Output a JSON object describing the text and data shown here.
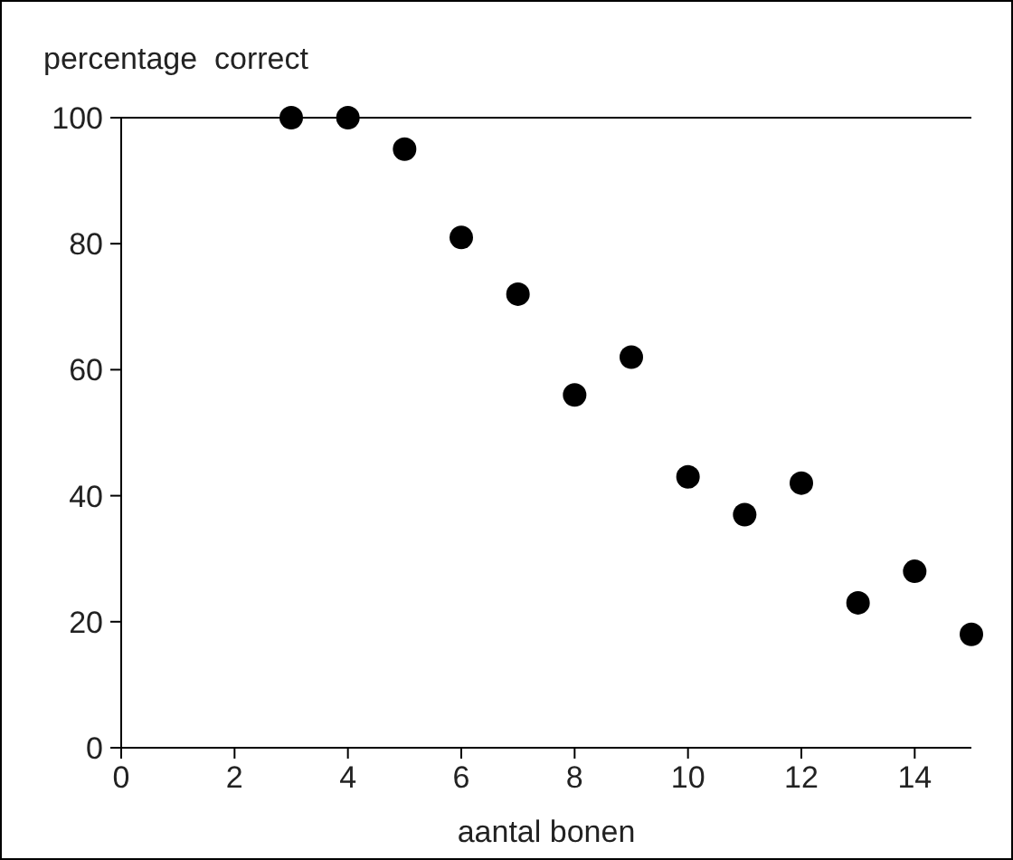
{
  "chart_data": {
    "type": "scatter",
    "xlabel": "aantal bonen",
    "ylabel": "percentage  correct",
    "x": [
      3,
      4,
      5,
      6,
      7,
      8,
      9,
      10,
      11,
      12,
      13,
      14,
      15
    ],
    "values": [
      100,
      100,
      95,
      81,
      72,
      56,
      62,
      43,
      37,
      42,
      23,
      28,
      18
    ],
    "color": "#000000",
    "marker": "circle",
    "xlim": [
      0,
      15
    ],
    "xticks": [
      0,
      2,
      4,
      6,
      8,
      10,
      12,
      14
    ],
    "ylim": [
      0,
      100
    ],
    "yticks": [
      0,
      20,
      40,
      60,
      80,
      100
    ],
    "grid": false
  }
}
